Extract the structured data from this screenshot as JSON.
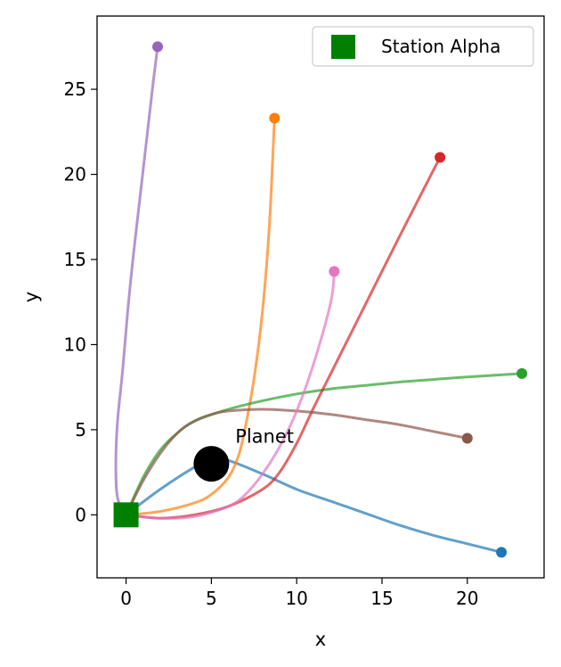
{
  "chart_data": {
    "type": "line",
    "title": "",
    "xlabel": "x",
    "ylabel": "y",
    "xlim": [
      -1.7,
      24.5
    ],
    "ylim": [
      -3.7,
      29.3
    ],
    "xticks": [
      0,
      5,
      10,
      15,
      20
    ],
    "yticks": [
      0,
      5,
      10,
      15,
      20,
      25
    ],
    "grid": false,
    "legend": {
      "placement": "top-right",
      "entries": [
        {
          "label": "Station Alpha",
          "marker": "square",
          "color": "#008000"
        }
      ]
    },
    "station": {
      "label": "Station Alpha",
      "x": 0,
      "y": 0,
      "color": "#008000"
    },
    "planet": {
      "label": "Planet",
      "x": 5,
      "y": 3,
      "color": "#000000"
    },
    "annotations": [
      {
        "text": "Planet",
        "x": 6.4,
        "y": 4.6
      }
    ],
    "series": [
      {
        "color": "#1f77b4",
        "points": [
          [
            0,
            0
          ],
          [
            2,
            1.5
          ],
          [
            4,
            2.8
          ],
          [
            5,
            3.3
          ],
          [
            6,
            3.2
          ],
          [
            8,
            2.4
          ],
          [
            10,
            1.5
          ],
          [
            12,
            0.8
          ],
          [
            14,
            0.1
          ],
          [
            16,
            -0.6
          ],
          [
            18,
            -1.2
          ],
          [
            20,
            -1.7
          ],
          [
            22,
            -2.2
          ]
        ]
      },
      {
        "color": "#ff7f0e",
        "points": [
          [
            0,
            0
          ],
          [
            2,
            0.2
          ],
          [
            4,
            0.7
          ],
          [
            5,
            1.2
          ],
          [
            6,
            2.2
          ],
          [
            6.6,
            3.5
          ],
          [
            7,
            5.2
          ],
          [
            7.5,
            8
          ],
          [
            8,
            12
          ],
          [
            8.4,
            17
          ],
          [
            8.7,
            23.3
          ]
        ]
      },
      {
        "color": "#2ca02c",
        "points": [
          [
            0,
            0
          ],
          [
            1,
            2.2
          ],
          [
            2,
            3.8
          ],
          [
            3,
            4.8
          ],
          [
            4,
            5.5
          ],
          [
            6,
            6.2
          ],
          [
            8,
            6.7
          ],
          [
            10,
            7.1
          ],
          [
            12,
            7.4
          ],
          [
            14,
            7.6
          ],
          [
            16,
            7.8
          ],
          [
            18,
            7.95
          ],
          [
            20,
            8.1
          ],
          [
            23.2,
            8.3
          ]
        ]
      },
      {
        "color": "#d62728",
        "points": [
          [
            0,
            0
          ],
          [
            2,
            -0.2
          ],
          [
            4,
            0
          ],
          [
            6,
            0.5
          ],
          [
            8,
            1.5
          ],
          [
            9,
            2.5
          ],
          [
            10,
            4.2
          ],
          [
            11,
            6.3
          ],
          [
            12,
            8.3
          ],
          [
            14,
            12.3
          ],
          [
            16,
            16.3
          ],
          [
            18.4,
            21
          ]
        ]
      },
      {
        "color": "#9467bd",
        "points": [
          [
            0,
            0
          ],
          [
            -0.5,
            1
          ],
          [
            -0.6,
            3
          ],
          [
            -0.5,
            5.5
          ],
          [
            -0.2,
            8.5
          ],
          [
            0.1,
            12
          ],
          [
            0.4,
            15
          ],
          [
            0.8,
            18.5
          ],
          [
            1.2,
            22
          ],
          [
            1.6,
            25.5
          ],
          [
            1.85,
            27.5
          ]
        ]
      },
      {
        "color": "#8c564b",
        "points": [
          [
            0,
            0
          ],
          [
            1,
            2
          ],
          [
            2,
            3.6
          ],
          [
            3,
            4.8
          ],
          [
            4,
            5.5
          ],
          [
            5,
            5.9
          ],
          [
            6,
            6.1
          ],
          [
            8,
            6.2
          ],
          [
            10,
            6.1
          ],
          [
            12,
            5.9
          ],
          [
            14,
            5.6
          ],
          [
            16,
            5.3
          ],
          [
            18,
            4.9
          ],
          [
            20,
            4.5
          ]
        ]
      },
      {
        "color": "#e377c2",
        "points": [
          [
            0,
            0
          ],
          [
            2,
            -0.2
          ],
          [
            4,
            -0.1
          ],
          [
            6,
            0.5
          ],
          [
            7,
            1.2
          ],
          [
            8,
            2.4
          ],
          [
            9,
            4
          ],
          [
            10,
            6.1
          ],
          [
            11,
            8.9
          ],
          [
            12,
            12.5
          ],
          [
            12.2,
            14.3
          ]
        ]
      }
    ]
  }
}
